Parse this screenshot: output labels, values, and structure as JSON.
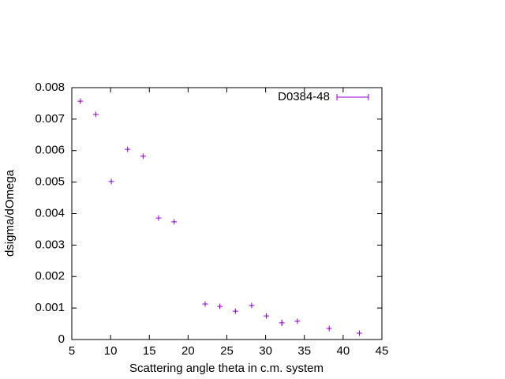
{
  "chart_data": {
    "type": "errorbar",
    "x_label": "Scattering angle theta in c.m. system",
    "y_label": "dsigma/dOmega",
    "xlim": [
      5,
      45
    ],
    "xticks": [
      5,
      10,
      15,
      20,
      25,
      30,
      35,
      40,
      45
    ],
    "ylim": [
      0,
      0.008
    ],
    "yticks": [
      0,
      0.001,
      0.002,
      0.003,
      0.004,
      0.005,
      0.006,
      0.007,
      0.008
    ],
    "legend_position": "top-right",
    "series": [
      {
        "name": "D0384-48",
        "color": "#9400d3",
        "x": [
          6.1,
          8.1,
          10.1,
          12.2,
          14.2,
          16.2,
          18.2,
          22.2,
          24.1,
          26.1,
          28.2,
          30.1,
          32.1,
          34.1,
          38.2,
          42.1
        ],
        "values": [
          0.00757,
          0.00715,
          0.00502,
          0.00604,
          0.00582,
          0.00386,
          0.00374,
          0.00113,
          0.00105,
          0.0009,
          0.00108,
          0.00075,
          0.00053,
          0.00058,
          0.00035,
          0.0002
        ],
        "errors": [
          3e-05,
          3e-05,
          3e-05,
          3e-05,
          3e-05,
          3e-05,
          3e-05,
          3e-05,
          5e-05,
          3e-05,
          3e-05,
          5e-05,
          0.0001,
          3e-05,
          3e-05,
          3e-05
        ]
      }
    ]
  }
}
